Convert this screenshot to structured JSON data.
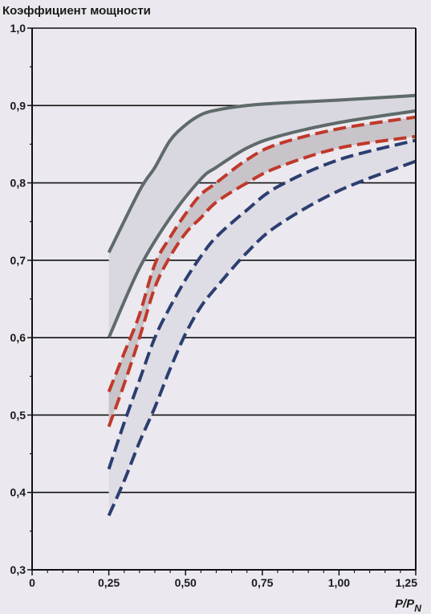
{
  "chart_data": {
    "type": "area",
    "title": "Коэффициент мощности",
    "xlabel": {
      "main": "P/P",
      "sub": "N"
    },
    "ylabel": "",
    "xlim": [
      0,
      1.25
    ],
    "ylim": [
      0.3,
      1.0
    ],
    "x_ticks": [
      0,
      0.25,
      0.5,
      0.75,
      1.0,
      1.25
    ],
    "x_tick_labels": [
      "0",
      "0,25",
      "0,50",
      "0,75",
      "1,00",
      "1,25"
    ],
    "y_ticks": [
      0.3,
      0.4,
      0.5,
      0.6,
      0.7,
      0.8,
      0.9,
      1.0
    ],
    "y_tick_labels": [
      "0,3",
      "0,4",
      "0,5",
      "0,6",
      "0,7",
      "0,8",
      "0,9",
      "1,0"
    ],
    "grid": "horizontal",
    "legend": "none",
    "bands": [
      {
        "color": "#5f6a6a",
        "fill": "#d9d7df",
        "style": "solid",
        "upper": {
          "x": [
            0.25,
            0.35,
            0.4,
            0.45,
            0.5,
            0.55,
            0.6,
            0.7,
            0.8,
            1.0,
            1.25
          ],
          "y": [
            0.71,
            0.79,
            0.82,
            0.855,
            0.875,
            0.888,
            0.894,
            0.9,
            0.903,
            0.907,
            0.913
          ]
        },
        "lower": {
          "x": [
            0.25,
            0.35,
            0.45,
            0.55,
            0.6,
            0.7,
            0.8,
            1.0,
            1.25
          ],
          "y": [
            0.6,
            0.69,
            0.755,
            0.805,
            0.82,
            0.845,
            0.86,
            0.878,
            0.893
          ]
        }
      },
      {
        "color": "#c0392b",
        "fill": "#c8c4c9",
        "style": "dashed",
        "upper": {
          "x": [
            0.25,
            0.3,
            0.35,
            0.4,
            0.45,
            0.5,
            0.55,
            0.6,
            0.7,
            0.8,
            1.0,
            1.25
          ],
          "y": [
            0.53,
            0.58,
            0.63,
            0.695,
            0.73,
            0.76,
            0.785,
            0.8,
            0.83,
            0.85,
            0.87,
            0.885
          ]
        },
        "lower": {
          "x": [
            0.25,
            0.3,
            0.35,
            0.4,
            0.45,
            0.5,
            0.55,
            0.6,
            0.7,
            0.8,
            1.0,
            1.25
          ],
          "y": [
            0.485,
            0.54,
            0.6,
            0.665,
            0.705,
            0.735,
            0.755,
            0.775,
            0.8,
            0.82,
            0.845,
            0.86
          ]
        }
      },
      {
        "color": "#2c3e70",
        "fill": "#dedce5",
        "style": "dashed",
        "upper": {
          "x": [
            0.25,
            0.3,
            0.35,
            0.4,
            0.45,
            0.5,
            0.55,
            0.6,
            0.7,
            0.8,
            1.0,
            1.25
          ],
          "y": [
            0.43,
            0.49,
            0.545,
            0.6,
            0.64,
            0.675,
            0.705,
            0.73,
            0.765,
            0.795,
            0.83,
            0.855
          ]
        },
        "lower": {
          "x": [
            0.25,
            0.3,
            0.35,
            0.4,
            0.45,
            0.5,
            0.55,
            0.6,
            0.7,
            0.8,
            1.0,
            1.25
          ],
          "y": [
            0.37,
            0.415,
            0.465,
            0.51,
            0.56,
            0.605,
            0.64,
            0.665,
            0.71,
            0.745,
            0.79,
            0.828
          ]
        }
      }
    ]
  }
}
